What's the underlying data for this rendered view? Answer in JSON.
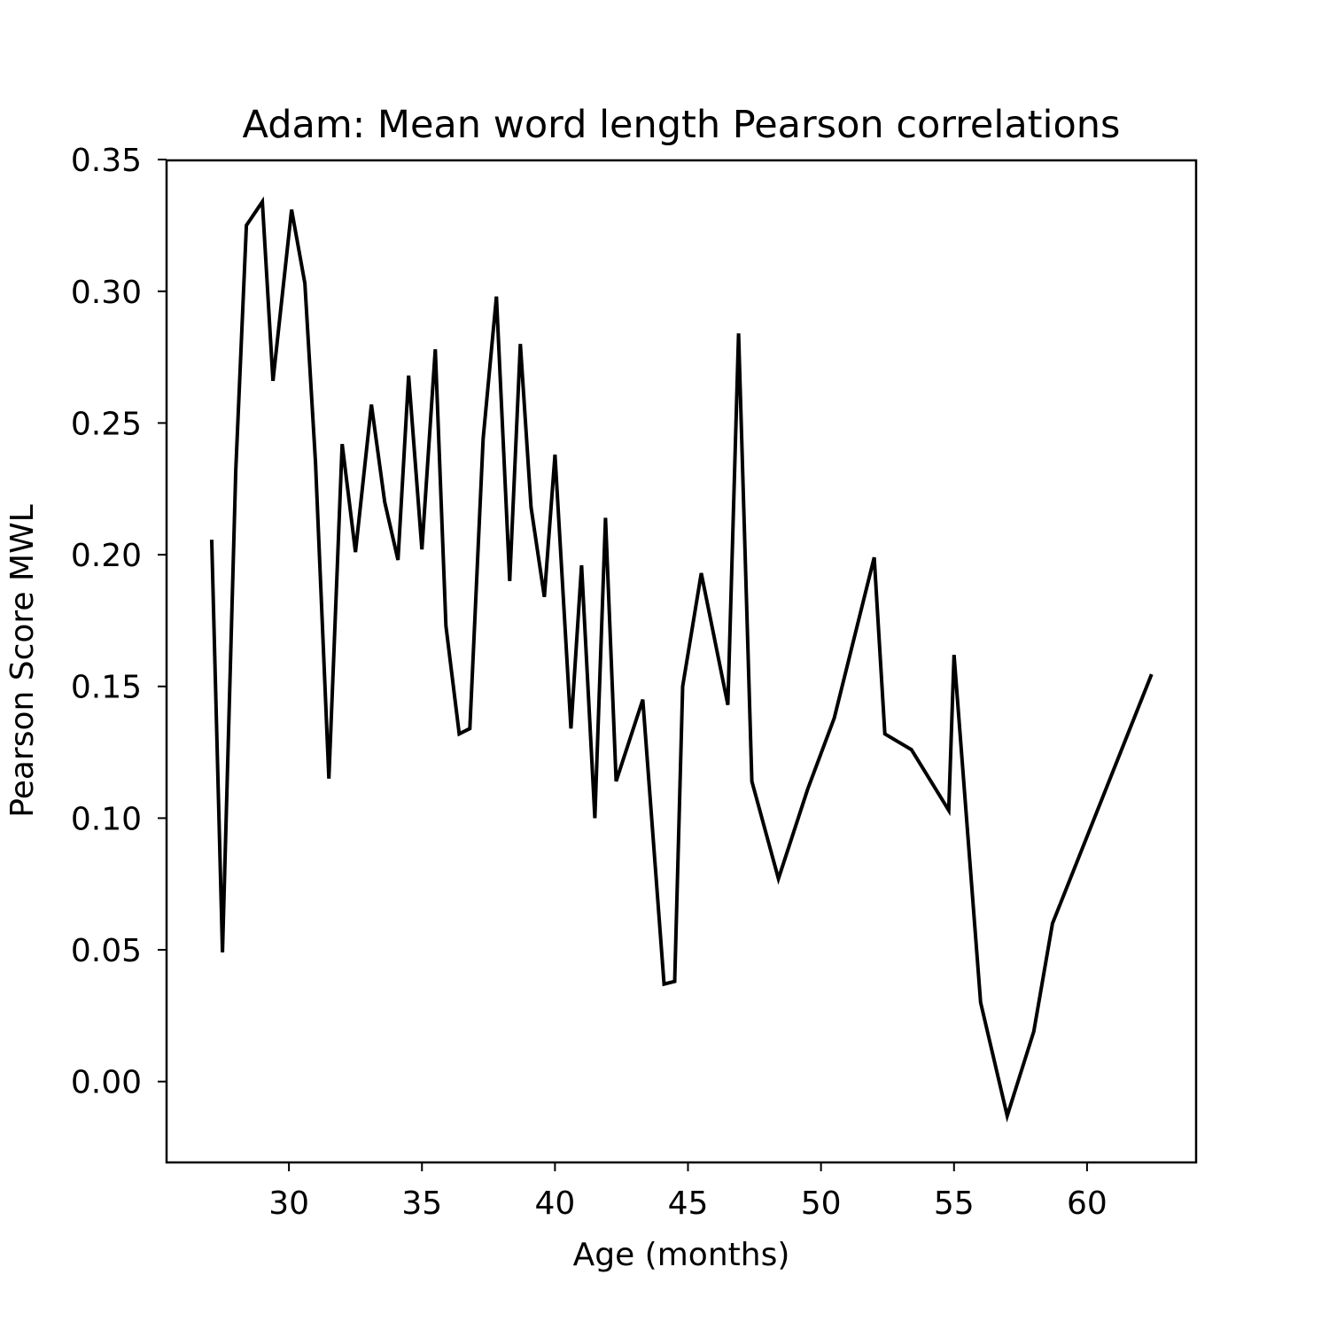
{
  "chart_data": {
    "type": "line",
    "title": "Adam: Mean word length Pearson correlations",
    "xlabel": "Age (months)",
    "ylabel": "Pearson Score MWL",
    "xlim": [
      25.4,
      64.1
    ],
    "ylim": [
      -0.0307,
      0.3497
    ],
    "xticks": [
      30,
      35,
      40,
      45,
      50,
      55,
      60
    ],
    "xtick_labels": [
      "30",
      "35",
      "40",
      "45",
      "50",
      "55",
      "60"
    ],
    "yticks": [
      0.0,
      0.05,
      0.1,
      0.15,
      0.2,
      0.25,
      0.3,
      0.35
    ],
    "ytick_labels": [
      "0.00",
      "0.05",
      "0.10",
      "0.15",
      "0.20",
      "0.25",
      "0.30",
      "0.35"
    ],
    "grid": false,
    "line_color": "#000000",
    "series": [
      {
        "name": "Pearson Score MWL",
        "x": [
          27.1,
          27.5,
          28.0,
          28.4,
          29.0,
          29.4,
          30.1,
          30.6,
          31.0,
          31.5,
          32.0,
          32.5,
          33.1,
          33.6,
          34.1,
          34.5,
          35.0,
          35.5,
          35.9,
          36.4,
          36.8,
          37.3,
          37.8,
          38.3,
          38.7,
          39.1,
          39.6,
          40.0,
          40.6,
          41.0,
          41.5,
          41.9,
          42.3,
          43.3,
          44.1,
          44.5,
          44.8,
          45.5,
          46.5,
          46.9,
          47.4,
          48.4,
          49.5,
          50.5,
          52.0,
          52.4,
          53.4,
          54.8,
          55.0,
          56.0,
          57.0,
          58.0,
          58.7,
          62.4
        ],
        "y": [
          0.205,
          0.049,
          0.232,
          0.325,
          0.334,
          0.266,
          0.331,
          0.303,
          0.235,
          0.115,
          0.242,
          0.201,
          0.257,
          0.22,
          0.198,
          0.268,
          0.202,
          0.278,
          0.173,
          0.132,
          0.134,
          0.244,
          0.298,
          0.19,
          0.28,
          0.218,
          0.184,
          0.238,
          0.134,
          0.196,
          0.1,
          0.214,
          0.114,
          0.145,
          0.037,
          0.038,
          0.15,
          0.193,
          0.143,
          0.284,
          0.114,
          0.077,
          0.111,
          0.138,
          0.199,
          0.132,
          0.126,
          0.103,
          0.162,
          0.03,
          -0.013,
          0.019,
          0.06,
          0.154
        ]
      }
    ]
  }
}
